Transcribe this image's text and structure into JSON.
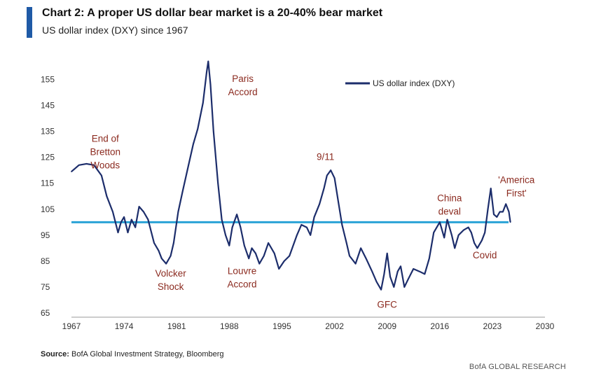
{
  "header": {
    "title": "Chart 2: A proper US dollar bear market is a 20-40% bear market",
    "subtitle": "US dollar index (DXY) since 1967"
  },
  "footer": {
    "source_label": "Source:",
    "source_text": "BofA Global Investment Strategy, Bloomberg",
    "brand": "BofA GLOBAL RESEARCH"
  },
  "colors": {
    "series": "#1c2d6b",
    "reference_line": "#2aa3d6",
    "annotation": "#8b2a1f",
    "axis_text": "#333333",
    "accent": "#1f5aa6"
  },
  "chart_data": {
    "type": "line",
    "title": "Chart 2: A proper US dollar bear market is a 20-40% bear market",
    "subtitle": "US dollar index (DXY) since 1967",
    "xlim": [
      1967,
      2030
    ],
    "ylim": [
      65,
      160
    ],
    "x_ticks": [
      "1967",
      "1974",
      "1981",
      "1988",
      "1995",
      "2002",
      "2009",
      "2016",
      "2023",
      "2030"
    ],
    "y_ticks": [
      "65",
      "75",
      "85",
      "95",
      "105",
      "115",
      "125",
      "135",
      "145",
      "155"
    ],
    "grid": false,
    "legend": {
      "position": "top-right",
      "entries": [
        "US dollar index (DXY)"
      ]
    },
    "reference_line": {
      "y": 100
    },
    "series": [
      {
        "name": "US dollar index (DXY)",
        "x": [
          1967,
          1968,
          1969,
          1970,
          1971,
          1971.7,
          1972.5,
          1973.2,
          1973.6,
          1974,
          1974.5,
          1975,
          1975.5,
          1976,
          1976.6,
          1977.2,
          1978,
          1978.6,
          1979,
          1979.6,
          1980.2,
          1980.6,
          1981.2,
          1981.8,
          1982.5,
          1983.2,
          1983.8,
          1984.5,
          1985.0,
          1985.2,
          1985.5,
          1985.9,
          1986.5,
          1987.0,
          1987.5,
          1988.0,
          1988.4,
          1989.0,
          1989.5,
          1990.0,
          1990.6,
          1991.0,
          1991.5,
          1992.0,
          1992.6,
          1993.2,
          1994.0,
          1994.6,
          1995.3,
          1996.0,
          1997.0,
          1997.6,
          1998.3,
          1998.8,
          1999.3,
          2000.0,
          2000.6,
          2001.0,
          2001.5,
          2002.0,
          2002.5,
          2003.0,
          2003.6,
          2004.0,
          2004.8,
          2005.5,
          2006.2,
          2007.0,
          2007.6,
          2008.2,
          2008.6,
          2009.0,
          2009.4,
          2009.9,
          2010.4,
          2010.8,
          2011.3,
          2011.8,
          2012.5,
          2013.3,
          2014.0,
          2014.6,
          2015.2,
          2016.0,
          2016.6,
          2017.0,
          2017.6,
          2018.0,
          2018.5,
          2019.2,
          2019.8,
          2020.2,
          2020.6,
          2021.0,
          2021.6,
          2022.0,
          2022.4,
          2022.8,
          2023.2,
          2023.6,
          2024.0,
          2024.4,
          2024.8,
          2025.2,
          2025.4
        ],
        "values": [
          119.5,
          122,
          122.5,
          122,
          118,
          110,
          104,
          96,
          100,
          102,
          96,
          101,
          98,
          106,
          104,
          101,
          92,
          89,
          86,
          84,
          87,
          92,
          104,
          112,
          121,
          130,
          136,
          146,
          158,
          162,
          153,
          135,
          115,
          101,
          95,
          91,
          98,
          103,
          98,
          91,
          86,
          90,
          88,
          84,
          87,
          92,
          88,
          82,
          85,
          87,
          95,
          99,
          98,
          95,
          102,
          107,
          113,
          118,
          120,
          117,
          108,
          99,
          92,
          87,
          84,
          90,
          86,
          81,
          77,
          74,
          80,
          88,
          79,
          75,
          81,
          83,
          75,
          78,
          82,
          81,
          80,
          86,
          96,
          100,
          94,
          101,
          95,
          90,
          95,
          97,
          98,
          96,
          92,
          90,
          93,
          96,
          105,
          113,
          103,
          102,
          104,
          104,
          107,
          104,
          100
        ]
      }
    ],
    "annotations": [
      {
        "text": "End of Bretton Woods",
        "x": 1971.5,
        "y": 131
      },
      {
        "text": "Volcker Shock",
        "x": 1980.2,
        "y": 79
      },
      {
        "text": "Paris Accord",
        "x": 1989.8,
        "y": 154
      },
      {
        "text": "Louvre Accord",
        "x": 1989.7,
        "y": 80
      },
      {
        "text": "9/11",
        "x": 2000.8,
        "y": 124
      },
      {
        "text": "GFC",
        "x": 2009.0,
        "y": 67
      },
      {
        "text": "China deval",
        "x": 2017.3,
        "y": 108
      },
      {
        "text": "Covid",
        "x": 2022.0,
        "y": 86
      },
      {
        "text": "'America First'",
        "x": 2026.2,
        "y": 115
      }
    ]
  }
}
